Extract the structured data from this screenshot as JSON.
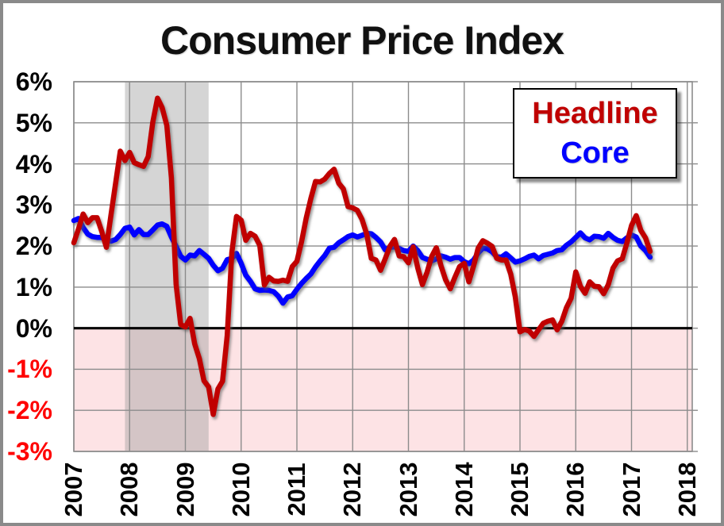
{
  "chart_data": {
    "type": "line",
    "title": "Consumer Price Index",
    "xlabel": "",
    "ylabel": "",
    "ylim": [
      -3,
      6
    ],
    "grid": true,
    "ytick_values": [
      6,
      5,
      4,
      3,
      2,
      1,
      0,
      -1,
      -2,
      -3
    ],
    "ytick_suffix": "%",
    "negative_ytick_color": "#ff0000",
    "xticks": [
      2007,
      2008,
      2009,
      2010,
      2011,
      2012,
      2013,
      2014,
      2015,
      2016,
      2017,
      2018
    ],
    "x_start_month": "2007-01",
    "x_end_month": "2017-05",
    "frequency": "monthly",
    "negative_region_color": "#fde3e5",
    "recession_band": {
      "start_year_frac": 2007.917,
      "end_year_frac": 2009.417,
      "color": "#9a9a9a",
      "opacity": 0.42
    },
    "zero_line_color": "#000000",
    "gridline_color": "#8c8c8c",
    "legend": {
      "position": "top-right"
    },
    "series": [
      {
        "name": "Headline",
        "color": "#c00000",
        "values": [
          2.08,
          2.42,
          2.78,
          2.57,
          2.69,
          2.69,
          2.36,
          1.97,
          2.76,
          3.54,
          4.31,
          4.08,
          4.28,
          4.03,
          3.98,
          3.94,
          4.18,
          5.02,
          5.6,
          5.37,
          4.94,
          3.66,
          1.07,
          0.09,
          0.03,
          0.24,
          -0.38,
          -0.74,
          -1.28,
          -1.43,
          -2.1,
          -1.48,
          -1.29,
          -0.18,
          1.84,
          2.72,
          2.63,
          2.14,
          2.31,
          2.24,
          2.02,
          1.05,
          1.24,
          1.15,
          1.14,
          1.17,
          1.14,
          1.5,
          1.63,
          2.11,
          2.68,
          3.16,
          3.57,
          3.56,
          3.63,
          3.77,
          3.87,
          3.53,
          3.39,
          2.96,
          2.93,
          2.87,
          2.65,
          2.3,
          1.7,
          1.66,
          1.41,
          1.69,
          1.99,
          2.16,
          1.76,
          1.74,
          1.59,
          1.98,
          1.47,
          1.06,
          1.36,
          1.75,
          1.96,
          1.52,
          1.18,
          0.96,
          1.24,
          1.5,
          1.58,
          1.13,
          1.51,
          1.95,
          2.13,
          2.07,
          1.99,
          1.7,
          1.66,
          1.66,
          1.32,
          0.76,
          -0.09,
          -0.03,
          -0.07,
          -0.2,
          -0.04,
          0.12,
          0.17,
          0.2,
          -0.04,
          0.17,
          0.5,
          0.73,
          1.37,
          1.02,
          0.85,
          1.13,
          1.02,
          1.01,
          0.84,
          1.06,
          1.46,
          1.64,
          1.69,
          2.07,
          2.5,
          2.74,
          2.38,
          2.2,
          1.87
        ]
      },
      {
        "name": "Core",
        "color": "#0000ff",
        "values": [
          2.62,
          2.67,
          2.45,
          2.29,
          2.23,
          2.21,
          2.21,
          2.13,
          2.12,
          2.16,
          2.28,
          2.43,
          2.46,
          2.27,
          2.4,
          2.28,
          2.28,
          2.39,
          2.51,
          2.54,
          2.48,
          2.22,
          1.99,
          1.75,
          1.66,
          1.78,
          1.76,
          1.89,
          1.8,
          1.7,
          1.53,
          1.4,
          1.46,
          1.67,
          1.7,
          1.82,
          1.58,
          1.29,
          1.14,
          0.96,
          0.92,
          0.93,
          0.92,
          0.89,
          0.78,
          0.61,
          0.76,
          0.79,
          0.95,
          1.09,
          1.21,
          1.32,
          1.49,
          1.64,
          1.77,
          1.95,
          1.97,
          2.08,
          2.15,
          2.23,
          2.27,
          2.22,
          2.26,
          2.31,
          2.3,
          2.21,
          2.1,
          1.91,
          1.97,
          1.98,
          1.94,
          1.89,
          1.87,
          2.0,
          1.89,
          1.72,
          1.68,
          1.64,
          1.69,
          1.76,
          1.73,
          1.68,
          1.72,
          1.72,
          1.62,
          1.57,
          1.66,
          1.83,
          1.95,
          1.93,
          1.86,
          1.74,
          1.73,
          1.81,
          1.71,
          1.61,
          1.64,
          1.69,
          1.75,
          1.78,
          1.69,
          1.77,
          1.8,
          1.83,
          1.89,
          1.91,
          2.02,
          2.1,
          2.21,
          2.32,
          2.2,
          2.15,
          2.24,
          2.23,
          2.19,
          2.31,
          2.21,
          2.14,
          2.11,
          2.2,
          2.27,
          2.22,
          2.0,
          1.89,
          1.73
        ]
      }
    ]
  }
}
